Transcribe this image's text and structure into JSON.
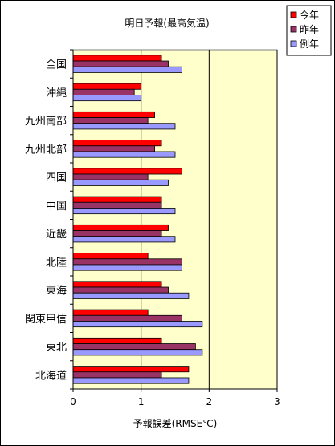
{
  "chart_data": {
    "type": "bar",
    "orientation": "horizontal",
    "title": "明日予報(最高気温)",
    "xlabel": "予報誤差(RMSE℃)",
    "xlim": [
      0,
      3
    ],
    "xticks": [
      0,
      1,
      2,
      3
    ],
    "grid": true,
    "legend_position": "top-right",
    "categories": [
      "全国",
      "沖縄",
      "九州南部",
      "九州北部",
      "四国",
      "中国",
      "近畿",
      "北陸",
      "東海",
      "関東甲信",
      "東北",
      "北海道"
    ],
    "series": [
      {
        "name": "今年",
        "color": "#ff0000",
        "values": [
          1.3,
          1.0,
          1.2,
          1.3,
          1.6,
          1.3,
          1.4,
          1.1,
          1.3,
          1.1,
          1.3,
          1.7
        ]
      },
      {
        "name": "昨年",
        "color": "#993366",
        "values": [
          1.4,
          0.9,
          1.1,
          1.2,
          1.1,
          1.3,
          1.3,
          1.6,
          1.4,
          1.6,
          1.8,
          1.3
        ]
      },
      {
        "name": "例年",
        "color": "#9999ff",
        "values": [
          1.6,
          1.0,
          1.5,
          1.5,
          1.4,
          1.5,
          1.5,
          1.6,
          1.7,
          1.9,
          1.9,
          1.7
        ]
      }
    ],
    "plot_background": "#ffffcc"
  }
}
